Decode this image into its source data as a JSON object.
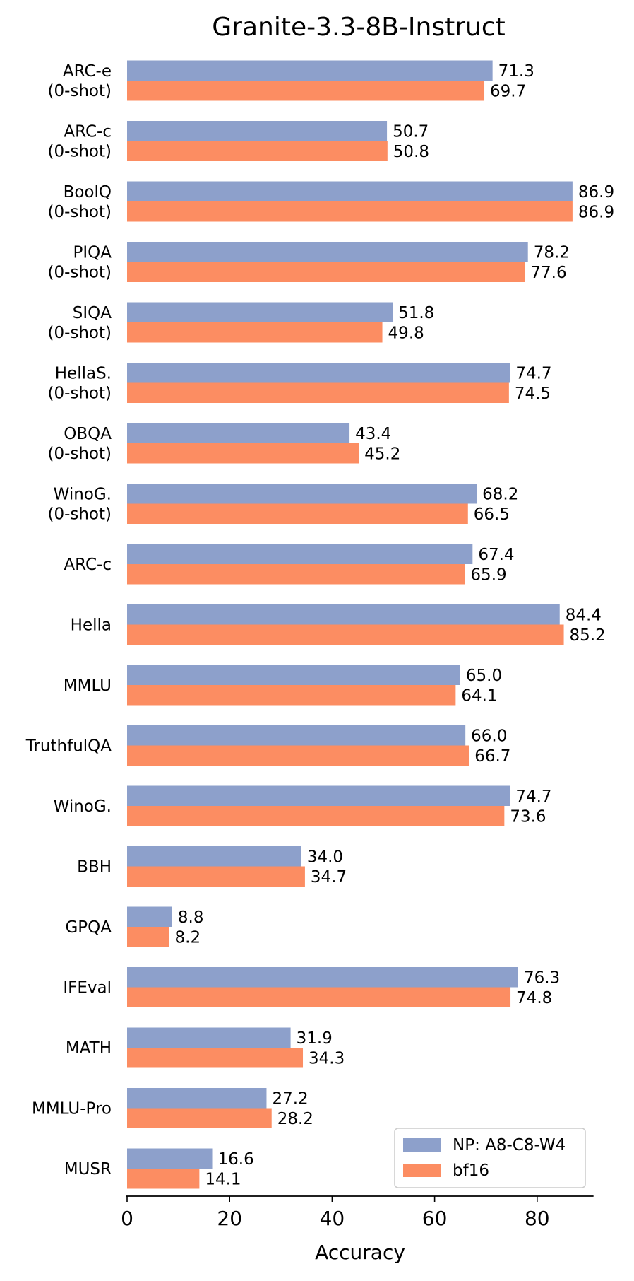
{
  "chart_data": {
    "type": "bar",
    "orientation": "horizontal",
    "title": "Granite-3.3-8B-Instruct",
    "xlabel": "Accuracy",
    "ylabel": "",
    "xlim": [
      0,
      91
    ],
    "xticks": [
      0,
      20,
      40,
      60,
      80
    ],
    "grid": false,
    "legend_position": "bottom-right",
    "categories": [
      [
        "ARC-e",
        "(0-shot)"
      ],
      [
        "ARC-c",
        "(0-shot)"
      ],
      [
        "BoolQ",
        "(0-shot)"
      ],
      [
        "PIQA",
        "(0-shot)"
      ],
      [
        "SIQA",
        "(0-shot)"
      ],
      [
        "HellaS.",
        "(0-shot)"
      ],
      [
        "OBQA",
        "(0-shot)"
      ],
      [
        "WinoG.",
        "(0-shot)"
      ],
      [
        "ARC-c"
      ],
      [
        "Hella"
      ],
      [
        "MMLU"
      ],
      [
        "TruthfulQA"
      ],
      [
        "WinoG."
      ],
      [
        "BBH"
      ],
      [
        "GPQA"
      ],
      [
        "IFEval"
      ],
      [
        "MATH"
      ],
      [
        "MMLU-Pro"
      ],
      [
        "MUSR"
      ]
    ],
    "series": [
      {
        "name": "NP: A8-C8-W4",
        "color": "#8da0cb",
        "values": [
          71.3,
          50.7,
          86.9,
          78.2,
          51.8,
          74.7,
          43.4,
          68.2,
          67.4,
          84.4,
          65.0,
          66.0,
          74.7,
          34.0,
          8.8,
          76.3,
          31.9,
          27.2,
          16.6
        ],
        "labels": [
          "71.3",
          "50.7",
          "86.9",
          "78.2",
          "51.8",
          "74.7",
          "43.4",
          "68.2",
          "67.4",
          "84.4",
          "65.0",
          "66.0",
          "74.7",
          "34.0",
          "8.8",
          "76.3",
          "31.9",
          "27.2",
          "16.6"
        ]
      },
      {
        "name": "bf16",
        "color": "#fc8d62",
        "values": [
          69.7,
          50.8,
          86.9,
          77.6,
          49.8,
          74.5,
          45.2,
          66.5,
          65.9,
          85.2,
          64.1,
          66.7,
          73.6,
          34.7,
          8.2,
          74.8,
          34.3,
          28.2,
          14.1
        ],
        "labels": [
          "69.7",
          "50.8",
          "86.9",
          "77.6",
          "49.8",
          "74.5",
          "45.2",
          "66.5",
          "65.9",
          "85.2",
          "64.1",
          "66.7",
          "73.6",
          "34.7",
          "8.2",
          "74.8",
          "34.3",
          "28.2",
          "14.1"
        ]
      }
    ]
  }
}
